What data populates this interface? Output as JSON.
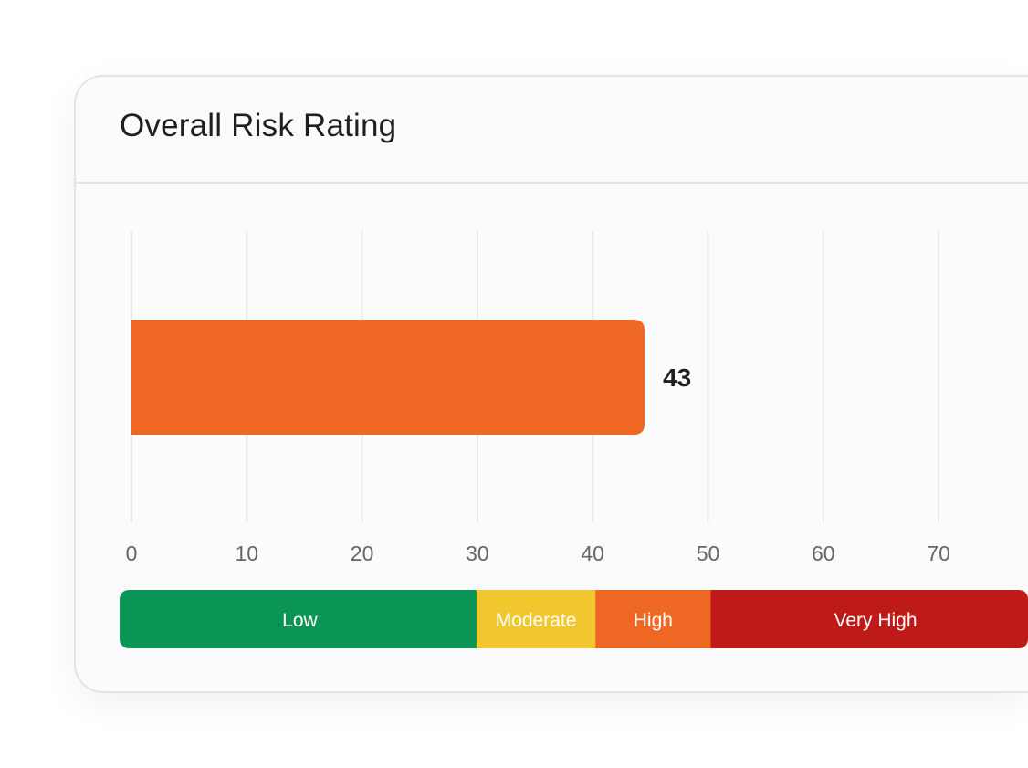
{
  "card": {
    "title": "Overall Risk Rating"
  },
  "chart_data": {
    "type": "bar",
    "orientation": "horizontal",
    "title": "Overall Risk Rating",
    "values": [
      43
    ],
    "data_labels": [
      "43"
    ],
    "bar_color": "#ef6823",
    "xticks": [
      0,
      10,
      20,
      30,
      40,
      50,
      60,
      70
    ],
    "xlabel": "",
    "ylabel": "",
    "grid": "vertical",
    "risk_bands": [
      {
        "label": "Low",
        "from": 0,
        "to": 30,
        "color": "#0a9455"
      },
      {
        "label": "Moderate",
        "from": 30,
        "to": 40,
        "color": "#f0c72f"
      },
      {
        "label": "High",
        "from": 40,
        "to": 50,
        "color": "#ef6823"
      },
      {
        "label": "Very High",
        "from": 50,
        "to": 100,
        "color": "#be1b18"
      }
    ]
  }
}
